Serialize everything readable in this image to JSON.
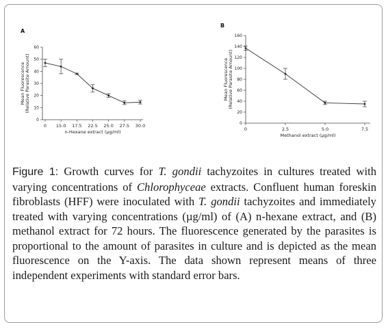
{
  "chart_data": [
    {
      "panel": "A",
      "type": "line",
      "x": [
        0,
        15.0,
        17.5,
        22.5,
        25.0,
        27.5,
        30.0
      ],
      "x_tick_labels": [
        "0",
        "15.0",
        "17.5",
        "22.5",
        "25.0",
        "27.5",
        "30.0"
      ],
      "values": [
        47,
        44,
        38,
        26,
        20,
        14,
        14.5
      ],
      "errors": [
        3,
        6,
        0.5,
        3,
        1.5,
        1.5,
        1.5
      ],
      "xlabel": "n-Hexane extract (µg/ml)",
      "ylabel": "Mean Fluorescence",
      "ylabel2": "(Relative Parasite Amount)",
      "ylim": [
        0,
        60
      ],
      "y_ticks": [
        0,
        10,
        20,
        30,
        40,
        50,
        60
      ],
      "x_scale": "categorical",
      "grid": false
    },
    {
      "panel": "B",
      "type": "line",
      "x": [
        0,
        2.5,
        5.0,
        7.5
      ],
      "x_tick_labels": [
        "0",
        "2.5",
        "5.0",
        "7.5"
      ],
      "values": [
        137,
        90,
        37,
        35
      ],
      "errors": [
        4,
        10,
        3,
        5
      ],
      "xlabel": "Methanol extract (µg/ml)",
      "ylabel": "Mean Fluorescence",
      "ylabel2": "(Relative Parasite Amount)",
      "ylim": [
        0,
        160
      ],
      "y_ticks": [
        0,
        20,
        40,
        60,
        80,
        100,
        120,
        140,
        160
      ],
      "x_scale": "linear",
      "grid": false
    }
  ],
  "caption": {
    "label": "Figure 1:",
    "segments": [
      {
        "text": " Growth curves for ",
        "italic": false
      },
      {
        "text": "T. gondii",
        "italic": true
      },
      {
        "text": " tachyzoites in cultures treated with varying concentrations of ",
        "italic": false
      },
      {
        "text": "Chlorophyceae",
        "italic": true
      },
      {
        "text": " extracts. Confluent human foreskin fibroblasts (HFF) were inoculated with ",
        "italic": false
      },
      {
        "text": "T. gondii",
        "italic": true
      },
      {
        "text": " tachyzoites and immediately treated with varying concentrations (µg/ml) of (A) n-hexane extract, and (B) methanol extract for 72 hours. The fluorescence generated by the parasites is proportional to the amount of parasites in culture and is depicted as the mean fluorescence on the Y-axis. The data shown represent means of three independent experiments with standard error bars.",
        "italic": false
      }
    ]
  }
}
